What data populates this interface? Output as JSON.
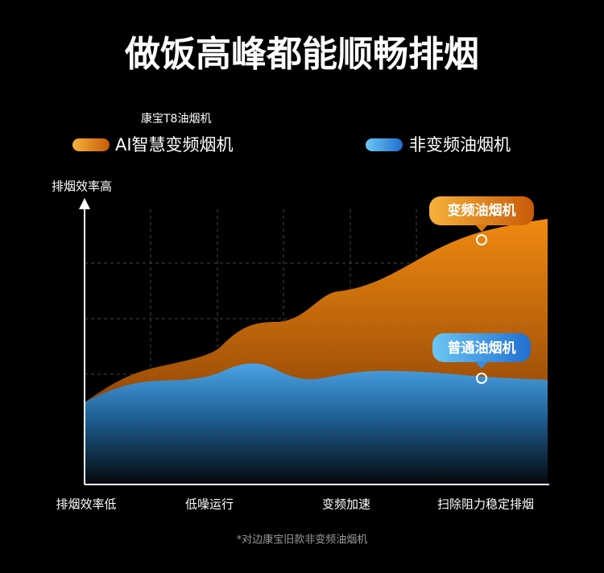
{
  "header": {
    "title": "做饭高峰都能顺畅排烟",
    "brand": "康宝T8油烟机"
  },
  "legend": [
    {
      "label": "AI智慧变频烟机"
    },
    {
      "label": "非变频油烟机"
    }
  ],
  "graphic": {
    "y_axis_label": "排烟效率高",
    "x_labels": [
      "排烟效率低",
      "低噪运行",
      "变频加速",
      "扫除阻力稳定排烟"
    ],
    "callouts": [
      "变频油烟机",
      "普通油烟机"
    ]
  },
  "footnote": "*对边康宝旧款非变频油烟机"
}
